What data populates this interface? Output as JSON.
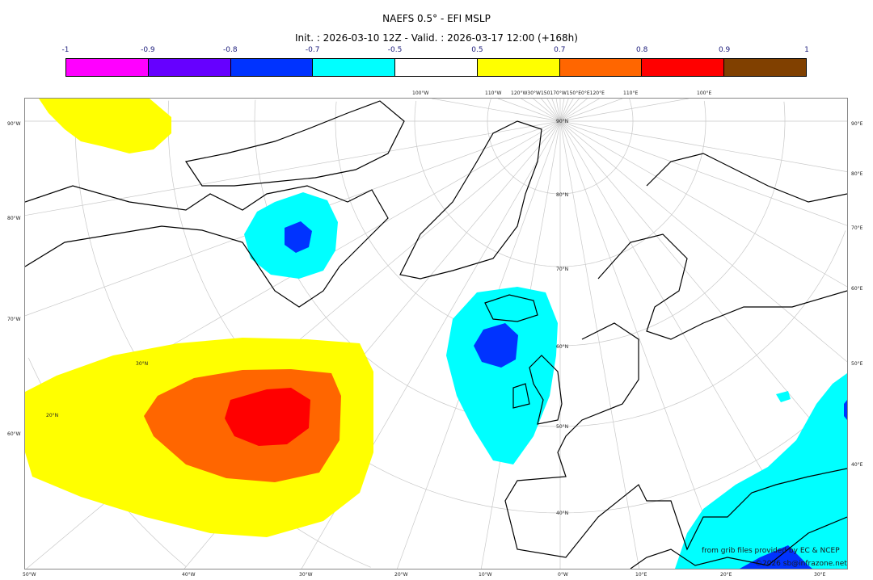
{
  "title": "NAEFS 0.5° - EFI MSLP",
  "subtitle": "Init. : 2026-03-10 12Z - Valid. : 2026-03-17 12:00 (+168h)",
  "colorbar": {
    "ticks": [
      "-1",
      "-0.9",
      "-0.8",
      "-0.7",
      "-0.5",
      "0.5",
      "0.7",
      "0.8",
      "0.9",
      "1"
    ],
    "colors": [
      "#ff00ff",
      "#6600ff",
      "#0033ff",
      "#00ffff",
      "#ffffff",
      "#ffff00",
      "#ff6600",
      "#ff0000",
      "#804000"
    ]
  },
  "axes": {
    "bottom": [
      "50°W",
      "40°W",
      "30°W",
      "20°W",
      "10°W",
      "0°W",
      "10°E",
      "20°E",
      "30°E"
    ],
    "left": [
      "90°W",
      "80°W",
      "70°W",
      "60°W"
    ],
    "right": [
      "90°E",
      "80°E",
      "70°E",
      "60°E",
      "50°E",
      "40°E"
    ],
    "top": [
      "100°W",
      "110°W",
      "120°W30°W150170°W150°E0°E120°E",
      "110°E",
      "100°E"
    ],
    "latitudes": [
      "90°N",
      "80°N",
      "70°N",
      "60°N",
      "50°N",
      "40°N",
      "30°N",
      "20°N"
    ]
  },
  "credits": {
    "source": "from grib files provided by EC & NCEP",
    "copyright": "©2026 sb@infrazone.net"
  }
}
